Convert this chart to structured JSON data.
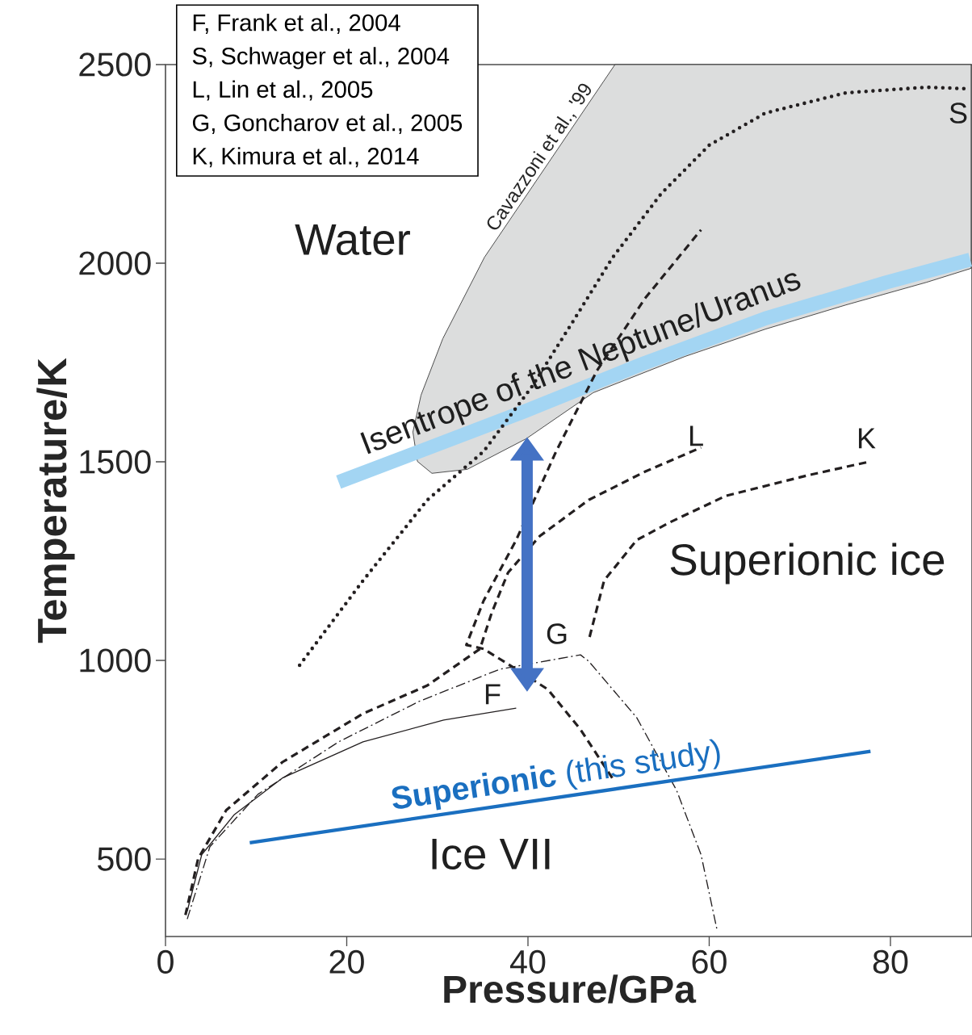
{
  "chart_data": {
    "type": "line",
    "xlabel": "Pressure/GPa",
    "ylabel": "Temperature/K",
    "xlim": [
      0,
      89
    ],
    "ylim": [
      305,
      2500
    ],
    "xticks": [
      0,
      20,
      40,
      60,
      80
    ],
    "yticks": [
      500,
      1000,
      1500,
      2000,
      2500
    ],
    "series": [
      {
        "type": "area",
        "name": "Cavazzoni et al., '99",
        "color": "#dcdddd",
        "x": [
          29.4,
          27.8,
          27.3,
          28.2,
          30.6,
          35.2,
          49.6,
          88.9,
          88.9,
          84.0,
          75.1,
          66.2,
          57.3,
          47.2,
          39.8,
          33.3
        ],
        "values": [
          1471,
          1501,
          1575,
          1668,
          1810,
          2015,
          2500,
          2500,
          1987,
          1952,
          1895,
          1834,
          1765,
          1674,
          1558,
          1481
        ]
      },
      {
        "color": "#a3d5f3",
        "line_style": "solid",
        "x": [
          19.1,
          28.0,
          39.6,
          52.9,
          66.2,
          79.6,
          88.8
        ],
        "values": [
          1449,
          1526,
          1627,
          1749,
          1861,
          1952,
          2009
        ]
      },
      {
        "color": "#231f20",
        "line_style": "dotted",
        "x": [
          14.8,
          21.8,
          28.9,
          35.1,
          40.4,
          44.9,
          49.3,
          54.7,
          60.0,
          66.2,
          75.1,
          84.0,
          88.8
        ],
        "values": [
          988,
          1201,
          1404,
          1526,
          1688,
          1851,
          2013,
          2175,
          2297,
          2378,
          2429,
          2443,
          2439
        ]
      },
      {
        "color": "#231f20",
        "line_style": "solid",
        "x": [
          2.4,
          4.0,
          7.6,
          12.9,
          21.8,
          30.7,
          38.7
        ],
        "values": [
          369,
          511,
          612,
          704,
          795,
          850,
          880
        ]
      },
      {
        "color": "#231f20",
        "line_style": "dashed",
        "x": [
          2.2,
          3.6,
          6.7,
          12.9,
          21.8,
          28.9,
          34.7,
          36.0,
          37.8,
          41.3,
          46.7,
          52.9,
          59.1
        ],
        "values": [
          359,
          501,
          623,
          744,
          866,
          937,
          1029,
          1120,
          1221,
          1313,
          1404,
          1475,
          1536
        ]
      },
      {
        "color": "#231f20",
        "line_style": "dashed",
        "x": [
          49.3,
          45.8,
          42.2,
          38.7,
          35.1,
          33.2,
          35.1,
          38.7,
          43.1,
          47.6,
          52.9,
          59.1
        ],
        "values": [
          704,
          826,
          927,
          978,
          1029,
          1039,
          1150,
          1303,
          1526,
          1729,
          1911,
          2084
        ]
      },
      {
        "color": "#231f20",
        "line_style": "dashdot",
        "x": [
          2.4,
          4.9,
          10.2,
          19.1,
          28.0,
          36.9,
          45.8,
          46.7,
          52.0,
          56.4,
          59.1,
          60.9
        ],
        "values": [
          349,
          531,
          663,
          795,
          897,
          978,
          1014,
          998,
          856,
          673,
          511,
          318
        ]
      },
      {
        "color": "#231f20",
        "line_style": "dashed",
        "x": [
          46.8,
          48.4,
          52.0,
          55.6,
          61.8,
          70.7,
          77.8
        ],
        "values": [
          1059,
          1201,
          1303,
          1347,
          1414,
          1465,
          1501
        ]
      },
      {
        "name": "**Superionic** (this study)",
        "color": "#1a6fc0",
        "line_style": "solid",
        "x": [
          9.3,
          77.8
        ],
        "values": [
          541,
          771
        ]
      }
    ],
    "annotations": [
      "F, Frank et al., 2004",
      "S, Schwager et al., 2004",
      "L, Lin et al., 2005",
      "G, Goncharov et al., 2005",
      "K, Kimura et al., 2014",
      "Water",
      "Isentrope of the Neptune/Uranus",
      "Superionic ice",
      "Ice VII",
      "F",
      "G",
      "L",
      "K",
      "S"
    ]
  }
}
